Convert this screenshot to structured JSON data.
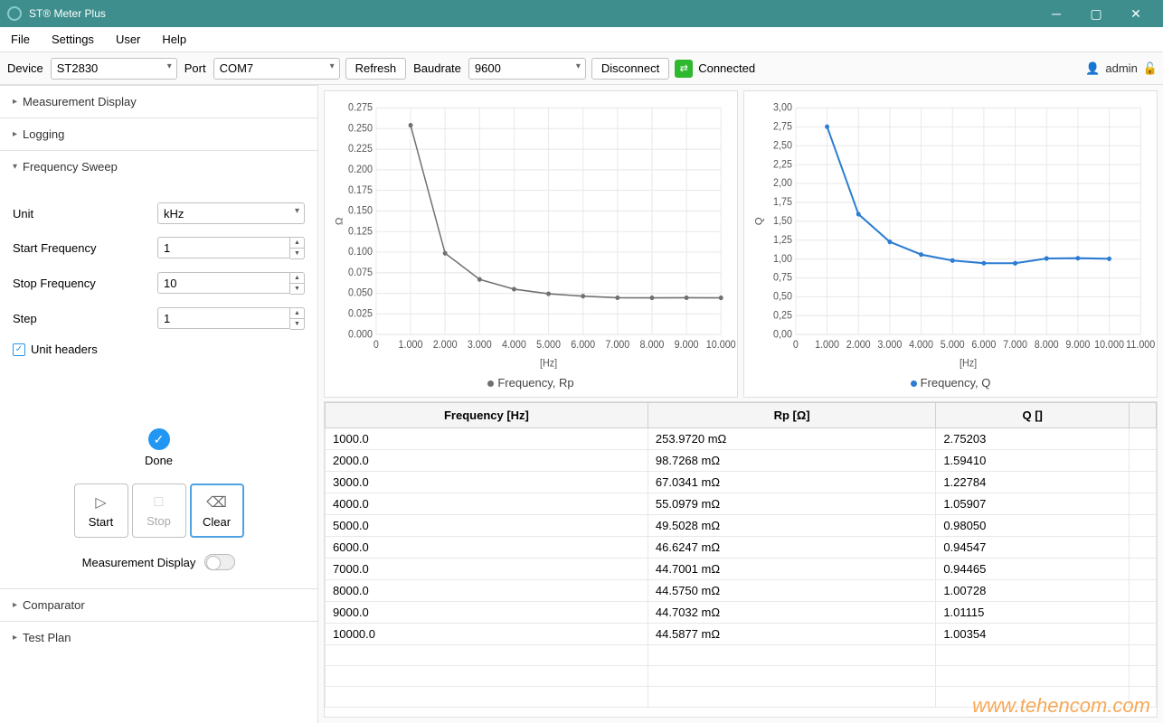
{
  "window": {
    "title": "ST® Meter Plus"
  },
  "menu": {
    "file": "File",
    "settings": "Settings",
    "user": "User",
    "help": "Help"
  },
  "toolbar": {
    "device_label": "Device",
    "device_value": "ST2830",
    "port_label": "Port",
    "port_value": "COM7",
    "refresh": "Refresh",
    "baudrate_label": "Baudrate",
    "baudrate_value": "9600",
    "disconnect": "Disconnect",
    "connected": "Connected",
    "user": "admin"
  },
  "sidebar": {
    "measurement_display": "Measurement Display",
    "logging": "Logging",
    "frequency_sweep": "Frequency Sweep",
    "unit_label": "Unit",
    "unit_value": "kHz",
    "start_freq_label": "Start Frequency",
    "start_freq_value": "1",
    "stop_freq_label": "Stop Frequency",
    "stop_freq_value": "10",
    "step_label": "Step",
    "step_value": "1",
    "unit_headers": "Unit headers",
    "done": "Done",
    "start": "Start",
    "stop": "Stop",
    "clear": "Clear",
    "md_toggle": "Measurement Display",
    "comparator": "Comparator",
    "test_plan": "Test Plan"
  },
  "chart1": {
    "type": "line",
    "legend": "Frequency, Rp",
    "color": "#707070",
    "x_label": "[Hz]",
    "y_label": "Ω",
    "x_ticks": [
      "0",
      "1.000",
      "2.000",
      "3.000",
      "4.000",
      "5.000",
      "6.000",
      "7.000",
      "8.000",
      "9.000",
      "10.000"
    ],
    "y_ticks": [
      "0.000",
      "0.025",
      "0.050",
      "0.075",
      "0.100",
      "0.125",
      "0.150",
      "0.175",
      "0.200",
      "0.225",
      "0.250",
      "0.275"
    ],
    "xlim": [
      0,
      10000
    ],
    "ylim": [
      0,
      0.275
    ],
    "grid_color": "#e8e8e8",
    "background": "#ffffff",
    "line_width": 1.5,
    "x": [
      1000,
      2000,
      3000,
      4000,
      5000,
      6000,
      7000,
      8000,
      9000,
      10000
    ],
    "y": [
      0.254,
      0.0987,
      0.067,
      0.0551,
      0.0495,
      0.0466,
      0.0447,
      0.0446,
      0.0447,
      0.0446
    ]
  },
  "chart2": {
    "type": "line",
    "legend": "Frequency, Q",
    "color": "#2b7cd3",
    "x_label": "[Hz]",
    "y_label": "Q",
    "x_ticks": [
      "0",
      "1.000",
      "2.000",
      "3.000",
      "4.000",
      "5.000",
      "6.000",
      "7.000",
      "8.000",
      "9.000",
      "10.000",
      "11.000"
    ],
    "y_ticks": [
      "0,00",
      "0,25",
      "0,50",
      "0,75",
      "1,00",
      "1,25",
      "1,50",
      "1,75",
      "2,00",
      "2,25",
      "2,50",
      "2,75",
      "3,00"
    ],
    "xlim": [
      0,
      11000
    ],
    "ylim": [
      0,
      3.0
    ],
    "grid_color": "#e8e8e8",
    "background": "#ffffff",
    "line_width": 2,
    "x": [
      1000,
      2000,
      3000,
      4000,
      5000,
      6000,
      7000,
      8000,
      9000,
      10000
    ],
    "y": [
      2.75203,
      1.5941,
      1.22784,
      1.05907,
      0.9805,
      0.94547,
      0.94465,
      1.00728,
      1.01115,
      1.00354
    ]
  },
  "table": {
    "columns": [
      "Frequency [Hz]",
      "Rp [Ω]",
      "Q []"
    ],
    "rows": [
      [
        "1000.0",
        "253.9720 mΩ",
        "2.75203"
      ],
      [
        "2000.0",
        "98.7268 mΩ",
        "1.59410"
      ],
      [
        "3000.0",
        "67.0341 mΩ",
        "1.22784"
      ],
      [
        "4000.0",
        "55.0979 mΩ",
        "1.05907"
      ],
      [
        "5000.0",
        "49.5028 mΩ",
        "0.98050"
      ],
      [
        "6000.0",
        "46.6247 mΩ",
        "0.94547"
      ],
      [
        "7000.0",
        "44.7001 mΩ",
        "0.94465"
      ],
      [
        "8000.0",
        "44.5750 mΩ",
        "1.00728"
      ],
      [
        "9000.0",
        "44.7032 mΩ",
        "1.01115"
      ],
      [
        "10000.0",
        "44.5877 mΩ",
        "1.00354"
      ]
    ]
  },
  "watermark": "www.tehencom.com"
}
